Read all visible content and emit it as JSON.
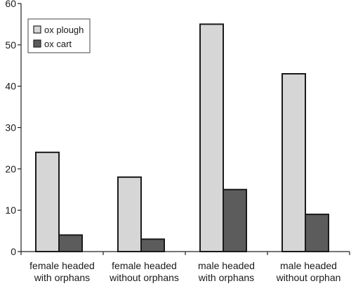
{
  "chart_data": {
    "type": "bar",
    "categories": [
      [
        "female headed",
        "with orphans"
      ],
      [
        "female headed",
        "without orphans"
      ],
      [
        "male headed",
        "with orphans"
      ],
      [
        "male headed",
        "without orphan"
      ]
    ],
    "series": [
      {
        "name": "ox plough",
        "values": [
          24,
          18,
          55,
          43
        ],
        "color": "#d6d6d6"
      },
      {
        "name": "ox cart",
        "values": [
          4,
          3,
          15,
          9
        ],
        "color": "#5c5c5c"
      }
    ],
    "ylim": [
      0,
      60
    ],
    "yticks": [
      "0",
      "10",
      "20",
      "30",
      "40",
      "50",
      "60"
    ],
    "xlabel": "",
    "ylabel": "",
    "legend": "top-left",
    "grid": false
  }
}
